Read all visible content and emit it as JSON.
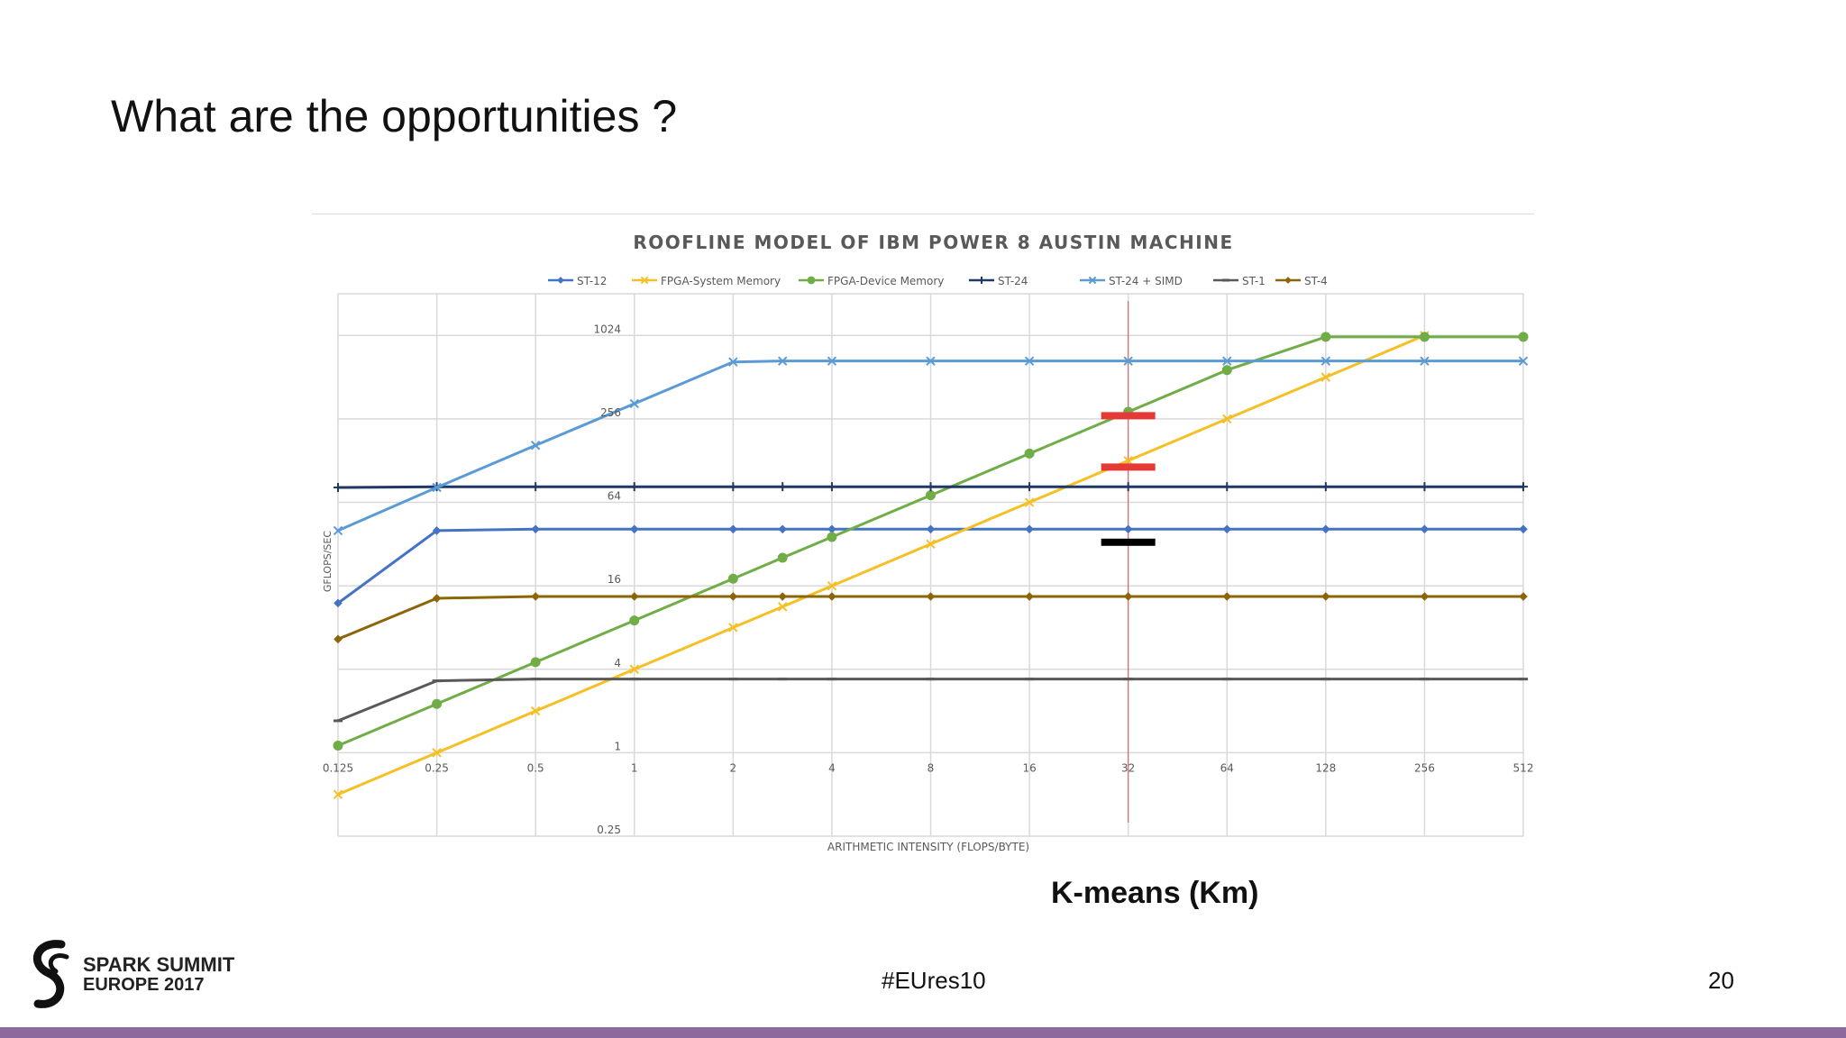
{
  "slide": {
    "title": "What are the opportunities ?",
    "caption": "K-means (Km)",
    "hashtag": "#EUres10",
    "page_number": "20",
    "logo_line1": "SPARK SUMMIT",
    "logo_line2": "EUROPE 2017",
    "accent_color": "#8e6a9c"
  },
  "chart_data": {
    "type": "line",
    "title": "ROOFLINE MODEL OF IBM POWER 8 AUSTIN MACHINE",
    "xlabel": "ARITHMETIC  INTENSITY (FLOPS/BYTE)",
    "ylabel": "GFLOPS/SEC",
    "x_scale": "log2",
    "y_scale": "log4",
    "x_ticks": [
      0.125,
      0.25,
      0.5,
      1,
      2,
      4,
      8,
      16,
      32,
      64,
      128,
      256,
      512
    ],
    "x_tick_labels": [
      "0.125",
      "0.25",
      "0.5",
      "1",
      "2",
      "4",
      "8",
      "16",
      "32",
      "64",
      "128",
      "256",
      "512"
    ],
    "y_ticks": [
      0.25,
      1,
      4,
      16,
      64,
      256,
      1024
    ],
    "y_tick_labels": [
      "0.25",
      "1",
      "4",
      "16",
      "64",
      "256",
      "1024"
    ],
    "xlim": [
      0.125,
      512
    ],
    "ylim": [
      0.25,
      2048
    ],
    "grid": true,
    "legend_position": "top",
    "series": [
      {
        "name": "ST-12",
        "color": "#4472c4",
        "marker": "diamond",
        "x": [
          0.125,
          0.25,
          0.5,
          1,
          2,
          2.83,
          4,
          8,
          16,
          32,
          64,
          128,
          256,
          512
        ],
        "y": [
          12,
          40,
          41,
          41,
          41,
          41,
          41,
          41,
          41,
          41,
          41,
          41,
          41,
          41
        ]
      },
      {
        "name": "FPGA-System Memory",
        "color": "#f5c024",
        "marker": "x",
        "x": [
          0.125,
          0.25,
          0.5,
          1,
          2,
          2.83,
          4,
          8,
          16,
          32,
          64,
          128,
          256
        ],
        "y": [
          0.5,
          1,
          2,
          4,
          8,
          11.3,
          16,
          32,
          64,
          128,
          256,
          512,
          1024
        ]
      },
      {
        "name": "FPGA-Device Memory",
        "color": "#70ad47",
        "marker": "circle",
        "x": [
          0.125,
          0.25,
          0.5,
          1,
          2,
          2.83,
          4,
          8,
          16,
          32,
          64,
          128,
          256,
          512
        ],
        "y": [
          1.125,
          2.25,
          4.5,
          9,
          18,
          25.5,
          36,
          72,
          144,
          288,
          576,
          1000,
          1000,
          1000
        ]
      },
      {
        "name": "ST-24",
        "color": "#203864",
        "marker": "plus",
        "x": [
          0.125,
          0.25,
          0.5,
          1,
          2,
          2.83,
          4,
          8,
          16,
          32,
          64,
          128,
          256,
          512
        ],
        "y": [
          82,
          83,
          83,
          83,
          83,
          83,
          83,
          83,
          83,
          83,
          83,
          83,
          83,
          83
        ]
      },
      {
        "name": "ST-24 + SIMD",
        "color": "#5b9bd5",
        "marker": "x",
        "x": [
          0.125,
          0.25,
          0.5,
          1,
          2,
          2.83,
          4,
          8,
          16,
          32,
          64,
          128,
          256,
          512
        ],
        "y": [
          40,
          82,
          165,
          330,
          660,
          670,
          670,
          670,
          670,
          670,
          670,
          670,
          670,
          670
        ]
      },
      {
        "name": "ST-1",
        "color": "#595959",
        "marker": "dash",
        "x": [
          0.125,
          0.25,
          0.5,
          1,
          2,
          2.83,
          4,
          8,
          16,
          32,
          64,
          128,
          256,
          512
        ],
        "y": [
          1.7,
          3.3,
          3.4,
          3.4,
          3.4,
          3.4,
          3.4,
          3.4,
          3.4,
          3.4,
          3.4,
          3.4,
          3.4,
          3.4
        ]
      },
      {
        "name": "ST-4",
        "color": "#8b6508",
        "marker": "diamond",
        "x": [
          0.125,
          0.25,
          0.5,
          1,
          2,
          2.83,
          4,
          8,
          16,
          32,
          64,
          128,
          256,
          512
        ],
        "y": [
          6.6,
          13,
          13.4,
          13.4,
          13.4,
          13.4,
          13.4,
          13.4,
          13.4,
          13.4,
          13.4,
          13.4,
          13.4,
          13.4
        ]
      }
    ],
    "annotations": [
      {
        "type": "vline",
        "x": 32,
        "color": "#e06666"
      },
      {
        "type": "marker-bar",
        "x": 32,
        "y": 270,
        "color": "#e53935"
      },
      {
        "type": "marker-bar",
        "x": 32,
        "y": 115,
        "color": "#e53935"
      },
      {
        "type": "marker-bar",
        "x": 32,
        "y": 33,
        "color": "#000000"
      }
    ]
  }
}
